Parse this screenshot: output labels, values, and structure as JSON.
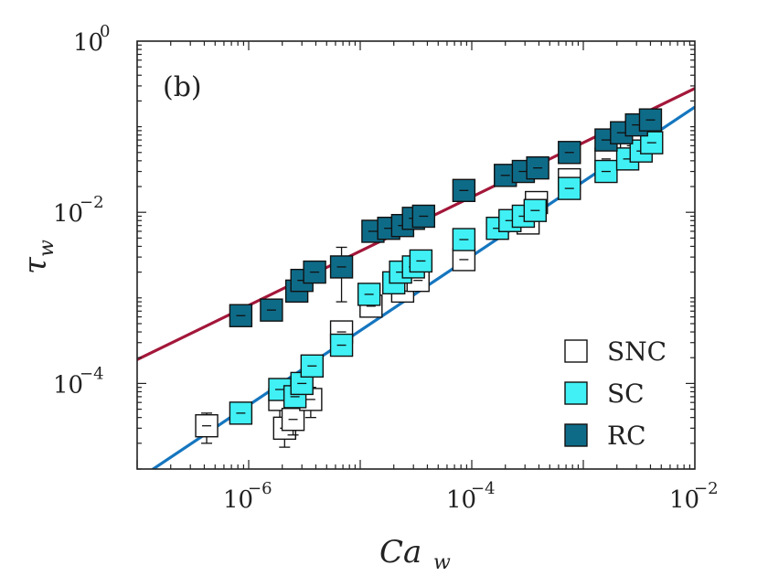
{
  "chart_data": {
    "type": "scatter",
    "panel_label": "(b)",
    "xlabel": "Ca",
    "xlabel_sub": "w",
    "ylabel": "τ",
    "ylabel_sub": "w",
    "xscale": "log",
    "yscale": "log",
    "xlim": [
      1e-07,
      0.01
    ],
    "ylim": [
      1e-05,
      1
    ],
    "xticks": [
      {
        "value": 1e-06,
        "base": "10",
        "exp": "−6"
      },
      {
        "value": 0.0001,
        "base": "10",
        "exp": "−4"
      },
      {
        "value": 0.01,
        "base": "10",
        "exp": "−2"
      }
    ],
    "yticks": [
      {
        "value": 1,
        "base": "10",
        "exp": "0"
      },
      {
        "value": 0.01,
        "base": "10",
        "exp": "−2"
      },
      {
        "value": 0.0001,
        "base": "10",
        "exp": "−4"
      }
    ],
    "legend_position": "bottom-right",
    "series": [
      {
        "name": "SNC",
        "color": "#ffffff",
        "stroke": "#111111",
        "points": [
          {
            "x": 4.2e-07,
            "y": 3.2e-05,
            "lo": 2e-05,
            "hi": 4.5e-05
          },
          {
            "x": 1.9e-06,
            "y": 6.5e-05,
            "lo": 3.5e-05,
            "hi": 9e-05
          },
          {
            "x": 2.1e-06,
            "y": 3e-05,
            "lo": 1.8e-05,
            "hi": 0.00011
          },
          {
            "x": 2.5e-06,
            "y": 3.8e-05,
            "lo": 2.5e-05,
            "hi": 5.5e-05
          },
          {
            "x": 3.6e-06,
            "y": 6.5e-05,
            "lo": 4e-05,
            "hi": 9e-05
          },
          {
            "x": 6.8e-06,
            "y": 0.0004,
            "lo": 0.0003,
            "hi": 0.0005
          },
          {
            "x": 1.25e-05,
            "y": 0.0008,
            "lo": 0.00065,
            "hi": 0.00095
          },
          {
            "x": 2.4e-05,
            "y": 0.0012,
            "lo": 0.001,
            "hi": 0.0015
          },
          {
            "x": 3.3e-05,
            "y": 0.0016,
            "lo": 0.0013,
            "hi": 0.002
          },
          {
            "x": 8.5e-05,
            "y": 0.0028,
            "lo": 0.0023,
            "hi": 0.0034
          },
          {
            "x": 0.00032,
            "y": 0.0075,
            "lo": 0.006,
            "hi": 0.009
          },
          {
            "x": 0.00038,
            "y": 0.013,
            "lo": 0.011,
            "hi": 0.015
          },
          {
            "x": 0.00075,
            "y": 0.024,
            "lo": 0.02,
            "hi": 0.028
          },
          {
            "x": 0.0016,
            "y": 0.042,
            "lo": 0.035,
            "hi": 0.05
          },
          {
            "x": 0.0027,
            "y": 0.06,
            "lo": 0.05,
            "hi": 0.07
          }
        ]
      },
      {
        "name": "SC",
        "color": "#40f0f4",
        "stroke": "#111111",
        "points": [
          {
            "x": 8.5e-07,
            "y": 4.5e-05,
            "lo": 3.6e-05,
            "hi": 5.5e-05
          },
          {
            "x": 1.9e-06,
            "y": 8.5e-05,
            "lo": 7e-05,
            "hi": 0.0001
          },
          {
            "x": 2.6e-06,
            "y": 7e-05,
            "lo": 5.5e-05,
            "hi": 8.5e-05
          },
          {
            "x": 3e-06,
            "y": 0.0001,
            "lo": 8.5e-05,
            "hi": 0.00012
          },
          {
            "x": 3.7e-06,
            "y": 0.00016,
            "lo": 0.00013,
            "hi": 0.00019
          },
          {
            "x": 6.8e-06,
            "y": 0.00028,
            "lo": 0.00023,
            "hi": 0.00033
          },
          {
            "x": 1.2e-05,
            "y": 0.0011,
            "lo": 0.0009,
            "hi": 0.0013
          },
          {
            "x": 2e-05,
            "y": 0.0015,
            "lo": 0.0012,
            "hi": 0.0018
          },
          {
            "x": 2.3e-05,
            "y": 0.002,
            "lo": 0.0017,
            "hi": 0.0024
          },
          {
            "x": 3e-05,
            "y": 0.0023,
            "lo": 0.0019,
            "hi": 0.0027
          },
          {
            "x": 3.5e-05,
            "y": 0.0027,
            "lo": 0.0023,
            "hi": 0.0032
          },
          {
            "x": 8.5e-05,
            "y": 0.0048,
            "lo": 0.004,
            "hi": 0.0056
          },
          {
            "x": 0.00017,
            "y": 0.0065,
            "lo": 0.0055,
            "hi": 0.0075
          },
          {
            "x": 0.00022,
            "y": 0.008,
            "lo": 0.0068,
            "hi": 0.0093
          },
          {
            "x": 0.00029,
            "y": 0.009,
            "lo": 0.0076,
            "hi": 0.0105
          },
          {
            "x": 0.00037,
            "y": 0.0105,
            "lo": 0.009,
            "hi": 0.012
          },
          {
            "x": 0.00075,
            "y": 0.019,
            "lo": 0.016,
            "hi": 0.022
          },
          {
            "x": 0.0016,
            "y": 0.03,
            "lo": 0.025,
            "hi": 0.035
          },
          {
            "x": 0.0025,
            "y": 0.042,
            "lo": 0.036,
            "hi": 0.049
          },
          {
            "x": 0.0033,
            "y": 0.052,
            "lo": 0.044,
            "hi": 0.06
          },
          {
            "x": 0.0041,
            "y": 0.065,
            "lo": 0.055,
            "hi": 0.075
          }
        ]
      },
      {
        "name": "RC",
        "color": "#0e6b88",
        "stroke": "#111111",
        "points": [
          {
            "x": 8.5e-07,
            "y": 0.00062,
            "lo": 0.00053,
            "hi": 0.00072
          },
          {
            "x": 1.6e-06,
            "y": 0.00072,
            "lo": 0.0006,
            "hi": 0.00085
          },
          {
            "x": 2.7e-06,
            "y": 0.0012,
            "lo": 0.001,
            "hi": 0.0014
          },
          {
            "x": 3e-06,
            "y": 0.0016,
            "lo": 0.0013,
            "hi": 0.0019
          },
          {
            "x": 3.9e-06,
            "y": 0.002,
            "lo": 0.0017,
            "hi": 0.0023
          },
          {
            "x": 6.8e-06,
            "y": 0.0023,
            "lo": 0.0009,
            "hi": 0.0039
          },
          {
            "x": 1.3e-05,
            "y": 0.006,
            "lo": 0.0052,
            "hi": 0.007
          },
          {
            "x": 1.8e-05,
            "y": 0.0065,
            "lo": 0.0056,
            "hi": 0.0075
          },
          {
            "x": 2.4e-05,
            "y": 0.007,
            "lo": 0.006,
            "hi": 0.0081
          },
          {
            "x": 3e-05,
            "y": 0.0085,
            "lo": 0.0073,
            "hi": 0.0098
          },
          {
            "x": 3.7e-05,
            "y": 0.009,
            "lo": 0.0078,
            "hi": 0.0104
          },
          {
            "x": 8.5e-05,
            "y": 0.018,
            "lo": 0.0155,
            "hi": 0.021
          },
          {
            "x": 0.0002,
            "y": 0.027,
            "lo": 0.023,
            "hi": 0.031
          },
          {
            "x": 0.00029,
            "y": 0.03,
            "lo": 0.026,
            "hi": 0.035
          },
          {
            "x": 0.00039,
            "y": 0.033,
            "lo": 0.028,
            "hi": 0.038
          },
          {
            "x": 0.00075,
            "y": 0.05,
            "lo": 0.043,
            "hi": 0.058
          },
          {
            "x": 0.0016,
            "y": 0.07,
            "lo": 0.06,
            "hi": 0.081
          },
          {
            "x": 0.0022,
            "y": 0.085,
            "lo": 0.073,
            "hi": 0.098
          },
          {
            "x": 0.003,
            "y": 0.105,
            "lo": 0.09,
            "hi": 0.12
          },
          {
            "x": 0.004,
            "y": 0.12,
            "lo": 0.103,
            "hi": 0.14
          }
        ]
      }
    ],
    "fit_lines": [
      {
        "name": "RC fit",
        "color": "#a3173a",
        "x": [
          1e-07,
          0.01
        ],
        "y": [
          0.00019,
          0.28
        ]
      },
      {
        "name": "SC fit",
        "color": "#1576bf",
        "x": [
          1e-07,
          0.01
        ],
        "y": [
          7.5e-06,
          0.17
        ]
      }
    ]
  }
}
